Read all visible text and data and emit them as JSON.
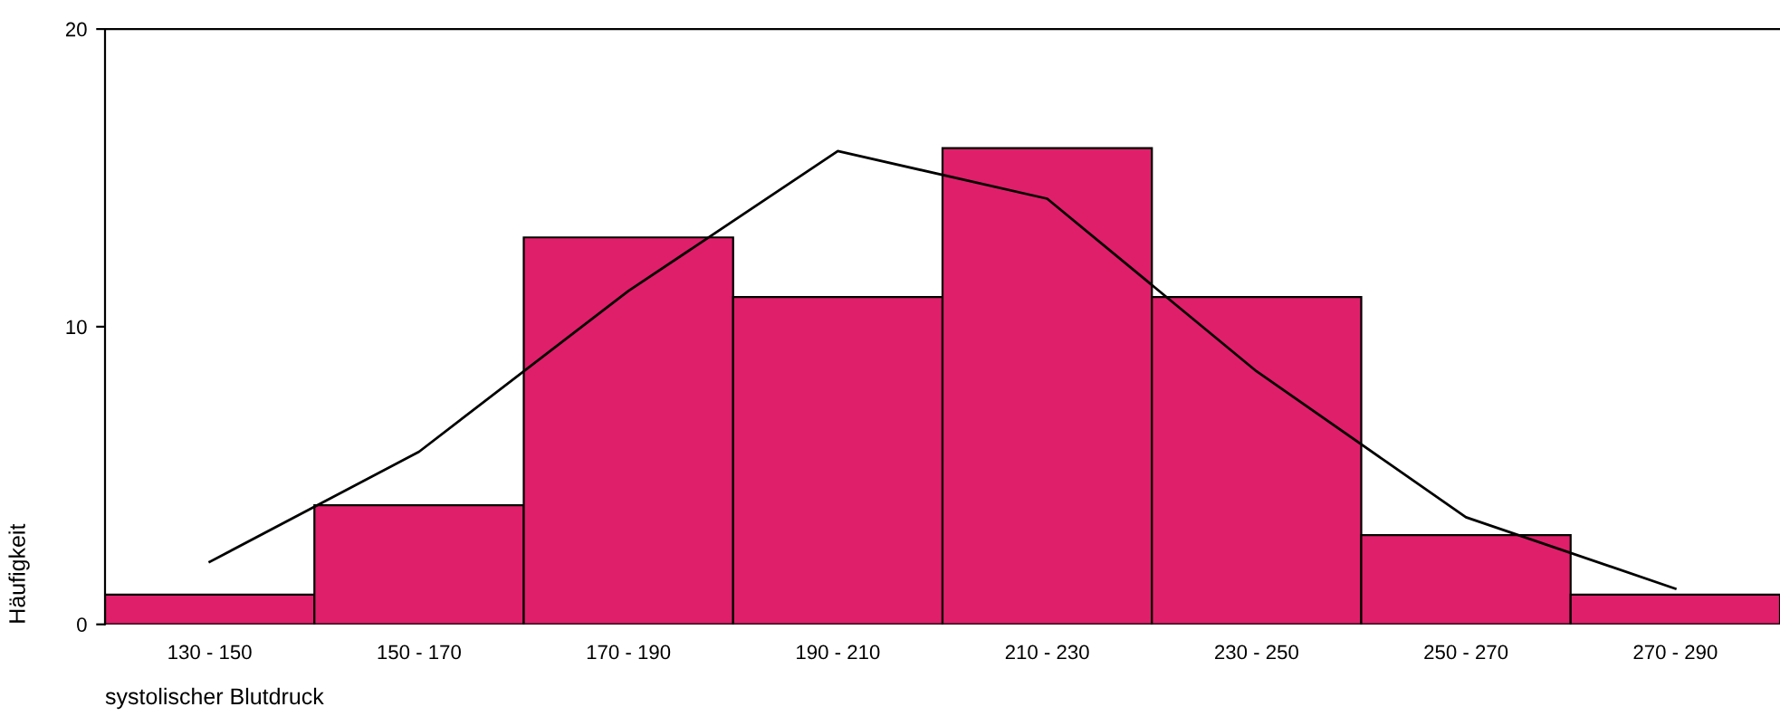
{
  "chart_data": {
    "type": "bar",
    "xlabel": "systolischer Blutdruck",
    "ylabel": "Häufigkeit",
    "categories": [
      "130 - 150",
      "150 - 170",
      "170 - 190",
      "190 - 210",
      "210 - 230",
      "230 - 250",
      "250 - 270",
      "270 - 290"
    ],
    "series": [
      {
        "color": "#e01f6a",
        "values": [
          1,
          4,
          13,
          11,
          16,
          11,
          3,
          1
        ]
      },
      {
        "type": "line",
        "color": "#000000",
        "x": [
          "130 - 150",
          "150 - 170",
          "170 - 190",
          "190 - 210",
          "210 - 230",
          "230 - 250",
          "250 - 270",
          "270 - 290"
        ],
        "values": [
          2.1,
          5.8,
          11.2,
          15.9,
          14.3,
          8.5,
          3.6,
          1.2
        ]
      }
    ],
    "ylim": [
      0,
      20
    ],
    "yticks": [
      0,
      10,
      20
    ],
    "grid": false,
    "legend": false
  }
}
